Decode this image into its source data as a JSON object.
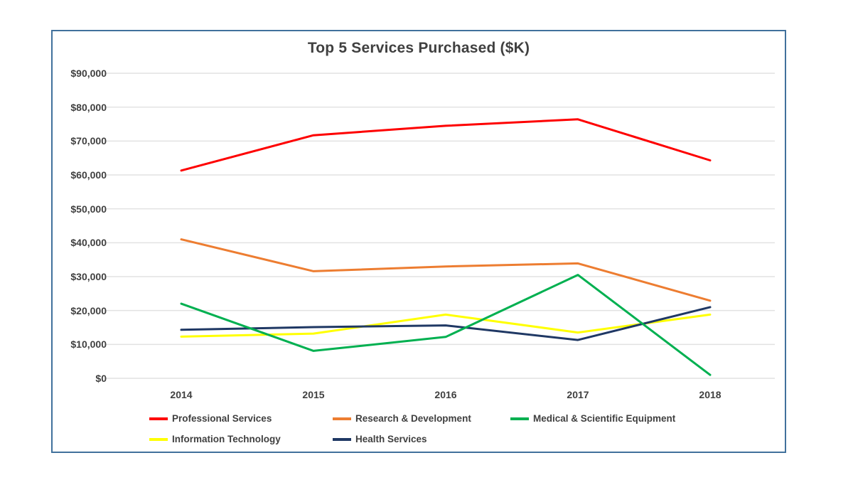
{
  "chart": {
    "title": "Top 5 Services Purchased ($K)"
  },
  "chart_data": {
    "type": "line",
    "title": "Top 5 Services Purchased ($K)",
    "categories": [
      "2014",
      "2015",
      "2016",
      "2017",
      "2018"
    ],
    "series": [
      {
        "name": "Professional Services",
        "color": "#FE0000",
        "values": [
          61300,
          71700,
          74500,
          76400,
          64300
        ]
      },
      {
        "name": "Research & Development",
        "color": "#ED7D31",
        "values": [
          41000,
          31600,
          33000,
          33900,
          22900
        ]
      },
      {
        "name": "Medical & Scientific Equipment",
        "color": "#00B050",
        "values": [
          22000,
          8100,
          12200,
          30500,
          1000
        ]
      },
      {
        "name": "Information Technology",
        "color": "#FFFF00",
        "values": [
          12300,
          13200,
          18800,
          13500,
          18800
        ]
      },
      {
        "name": "Health Services",
        "color": "#1F3864",
        "values": [
          14300,
          15100,
          15600,
          11300,
          21000
        ]
      }
    ],
    "ylim": [
      0,
      90000
    ],
    "y_tick_step": 10000,
    "y_tick_labels": [
      "$0",
      "$10,000",
      "$20,000",
      "$30,000",
      "$40,000",
      "$50,000",
      "$60,000",
      "$70,000",
      "$80,000",
      "$90,000"
    ],
    "xlabel": "",
    "ylabel": "",
    "grid": true,
    "legend_position": "bottom",
    "draw_order": [
      0,
      1,
      3,
      4,
      2
    ]
  },
  "style": {
    "text_color": "#404040",
    "gridline_color": "#E2E2E2",
    "frame_border_color": "#41719C",
    "background": "#FFFFFF"
  }
}
